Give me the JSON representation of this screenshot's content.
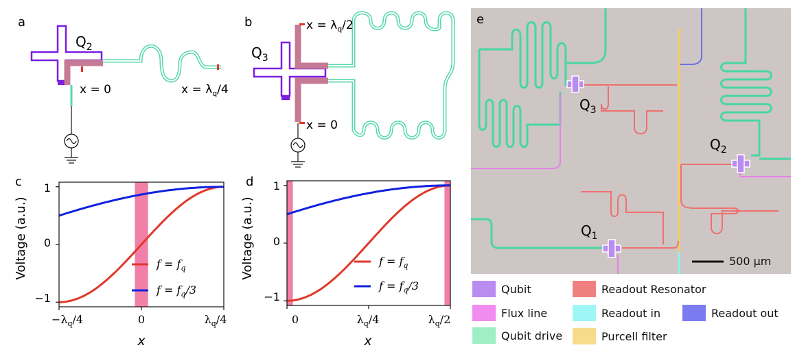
{
  "panels": {
    "a": {
      "letter": "a",
      "qubit_label_main": "Q",
      "qubit_label_sub": "2",
      "x0_label": "x = 0",
      "xend_label": "x = λ",
      "xend_sub": "q",
      "xend_tail": "/4"
    },
    "b": {
      "letter": "b",
      "qubit_label_main": "Q",
      "qubit_label_sub": "3",
      "x0_label": "x = 0",
      "xend_label": "x = λ",
      "xend_sub": "q",
      "xend_tail": "/2"
    },
    "c": {
      "letter": "c",
      "ylabel": "Voltage  (a.u.)",
      "xlabel": "x",
      "yticks": [
        "1",
        "0",
        "−1"
      ],
      "xticks": [
        {
          "main": "−λ",
          "sub": "q",
          "tail": "/4"
        },
        {
          "main": "0",
          "sub": "",
          "tail": ""
        },
        {
          "main": "λ",
          "sub": "q",
          "tail": "/4"
        }
      ],
      "legend": [
        {
          "prefix": "f = f",
          "sub": "q",
          "tail": ""
        },
        {
          "prefix": "f = f",
          "sub": "q",
          "tail": "/3"
        }
      ]
    },
    "d": {
      "letter": "d",
      "ylabel": "Voltage  (a.u.)",
      "xlabel": "x",
      "yticks": [
        "1",
        "0",
        "−1"
      ],
      "xticks": [
        {
          "main": "0",
          "sub": "",
          "tail": ""
        },
        {
          "main": "λ",
          "sub": "q",
          "tail": "/4"
        },
        {
          "main": "λ",
          "sub": "q",
          "tail": "/2"
        }
      ],
      "legend": [
        {
          "prefix": "f = f",
          "sub": "q",
          "tail": ""
        },
        {
          "prefix": "f = f",
          "sub": "q",
          "tail": "/3"
        }
      ]
    },
    "e": {
      "letter": "e",
      "labels": [
        {
          "main": "Q",
          "sub": "3"
        },
        {
          "main": "Q",
          "sub": "2"
        },
        {
          "main": "Q",
          "sub": "1"
        }
      ],
      "scale_bar": "500 µm"
    }
  },
  "chart_data": [
    {
      "type": "line",
      "panel": "c",
      "xlabel": "x",
      "ylabel": "Voltage (a.u.)",
      "xlim": [
        -0.25,
        0.25
      ],
      "ylim": [
        -1.08,
        1.08
      ],
      "x_unit": "λq",
      "highlight_band": [
        -0.02,
        0.02
      ],
      "series": [
        {
          "name": "f = fq",
          "color": "#e0382b",
          "formula": "sin(2πx)",
          "x": [
            -0.25,
            -0.2,
            -0.15,
            -0.1,
            -0.05,
            0,
            0.05,
            0.1,
            0.15,
            0.2,
            0.25
          ],
          "y": [
            -1,
            -0.951,
            -0.809,
            -0.588,
            -0.309,
            0,
            0.309,
            0.588,
            0.809,
            0.951,
            1
          ]
        },
        {
          "name": "f = fq/3",
          "color": "#1020e0",
          "formula": "sin(2πx/3+π/3)",
          "x": [
            -0.25,
            -0.2,
            -0.15,
            -0.1,
            -0.05,
            0,
            0.05,
            0.1,
            0.15,
            0.2,
            0.25
          ],
          "y": [
            0.5,
            0.588,
            0.669,
            0.743,
            0.809,
            0.866,
            0.914,
            0.951,
            0.978,
            0.995,
            1
          ]
        }
      ]
    },
    {
      "type": "line",
      "panel": "d",
      "xlabel": "x",
      "ylabel": "Voltage (a.u.)",
      "xlim": [
        0,
        0.5
      ],
      "ylim": [
        -1.08,
        1.08
      ],
      "x_unit": "λq",
      "highlight_bands": [
        [
          0,
          0.018
        ],
        [
          0.482,
          0.5
        ]
      ],
      "series": [
        {
          "name": "f = fq",
          "color": "#e0382b",
          "formula": "sin(2πx−π/2)",
          "x": [
            0,
            0.05,
            0.1,
            0.15,
            0.2,
            0.25,
            0.3,
            0.35,
            0.4,
            0.45,
            0.5
          ],
          "y": [
            -1,
            -0.951,
            -0.809,
            -0.588,
            -0.309,
            0,
            0.309,
            0.588,
            0.809,
            0.951,
            1
          ]
        },
        {
          "name": "f = fq/3",
          "color": "#1020e0",
          "formula": "sin(2πx/3+π/6)",
          "x": [
            0,
            0.05,
            0.1,
            0.15,
            0.2,
            0.25,
            0.3,
            0.35,
            0.4,
            0.45,
            0.5
          ],
          "y": [
            0.5,
            0.588,
            0.669,
            0.743,
            0.809,
            0.866,
            0.914,
            0.951,
            0.978,
            0.995,
            1
          ]
        }
      ]
    }
  ],
  "legend": {
    "items": [
      {
        "label": "Qubit",
        "color": "#b98cf0"
      },
      {
        "label": "Readout Resonator",
        "color": "#f08080"
      },
      {
        "label": "Flux line",
        "color": "#f08cf0"
      },
      {
        "label": "Readout in",
        "color": "#9ef6f6"
      },
      {
        "label": "Readout out",
        "color": "#7b7bf0"
      },
      {
        "label": "Qubit drive",
        "color": "#9ef0c4"
      },
      {
        "label": "Purcell filter",
        "color": "#f7dc8a"
      }
    ]
  },
  "colors": {
    "qubit": "#7a1ee0",
    "resonator_hi": "#c77a95",
    "cpw": "#55d9a8",
    "red_curve": "#e0382b",
    "blue_curve": "#1020e0",
    "band": "#ee6a9a"
  }
}
